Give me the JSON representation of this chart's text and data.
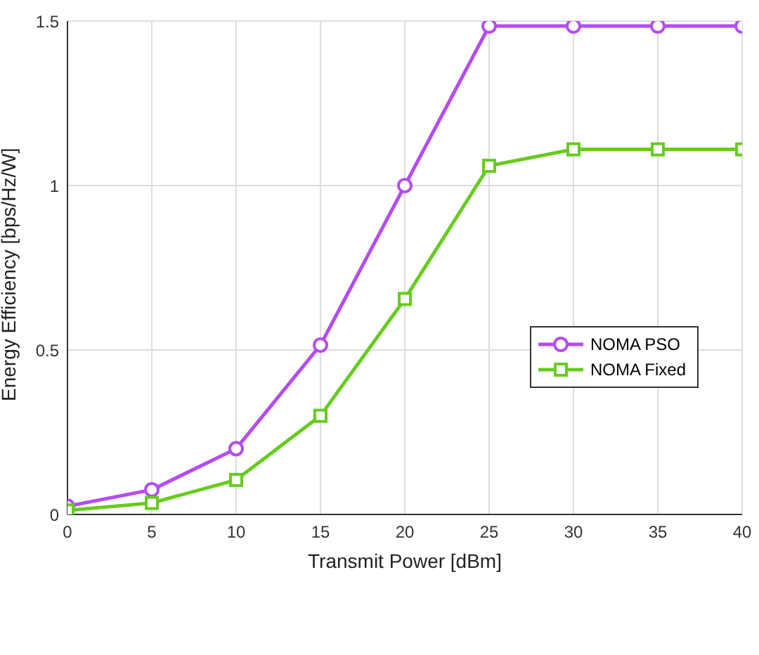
{
  "chart_data": {
    "type": "line",
    "xlabel": "Transmit Power [dBm]",
    "ylabel": "Energy Efficiency [bps/Hz/W]",
    "x": [
      0,
      5,
      10,
      15,
      20,
      25,
      30,
      35,
      40
    ],
    "series": [
      {
        "name": "NOMA PSO",
        "color": "#b44cf2",
        "marker": "circle",
        "values": [
          0.025,
          0.075,
          0.2,
          0.515,
          1.0,
          1.485,
          1.485,
          1.485,
          1.485
        ]
      },
      {
        "name": "NOMA Fixed",
        "color": "#66cc1e",
        "marker": "square",
        "values": [
          0.012,
          0.035,
          0.105,
          0.3,
          0.655,
          1.06,
          1.11,
          1.11,
          1.11
        ]
      }
    ],
    "xlim": [
      0,
      40
    ],
    "xticks": [
      0,
      5,
      10,
      15,
      20,
      25,
      30,
      35,
      40
    ],
    "ylim": [
      0,
      1.5
    ],
    "yticks": [
      0,
      0.5,
      1,
      1.5
    ],
    "grid": true,
    "legend": "right",
    "line_style": "solid"
  }
}
